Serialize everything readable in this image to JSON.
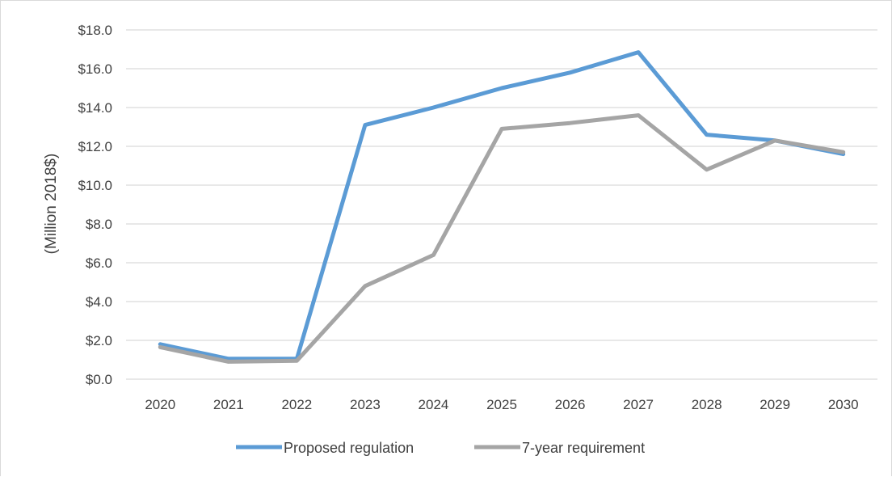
{
  "chart_data": {
    "type": "line",
    "title": "",
    "xlabel": "",
    "ylabel": "(Million 2018$)",
    "categories": [
      "2020",
      "2021",
      "2022",
      "2023",
      "2024",
      "2025",
      "2026",
      "2027",
      "2028",
      "2029",
      "2030"
    ],
    "ylim": [
      0,
      18
    ],
    "yticks": [
      0,
      2,
      4,
      6,
      8,
      10,
      12,
      14,
      16,
      18
    ],
    "ytick_labels": [
      "$0.0",
      "$2.0",
      "$4.0",
      "$6.0",
      "$8.0",
      "$10.0",
      "$12.0",
      "$14.0",
      "$16.0",
      "$18.0"
    ],
    "grid": "horizontal",
    "legend_position": "bottom",
    "series": [
      {
        "name": "Proposed regulation",
        "color": "#5B9BD5",
        "values": [
          1.8,
          1.05,
          1.05,
          13.1,
          14.0,
          15.0,
          15.8,
          16.85,
          12.6,
          12.3,
          11.6
        ]
      },
      {
        "name": "7-year requirement",
        "color": "#A5A5A5",
        "values": [
          1.65,
          0.9,
          0.95,
          4.8,
          6.4,
          12.9,
          13.2,
          13.6,
          10.8,
          12.3,
          11.7
        ]
      }
    ]
  }
}
